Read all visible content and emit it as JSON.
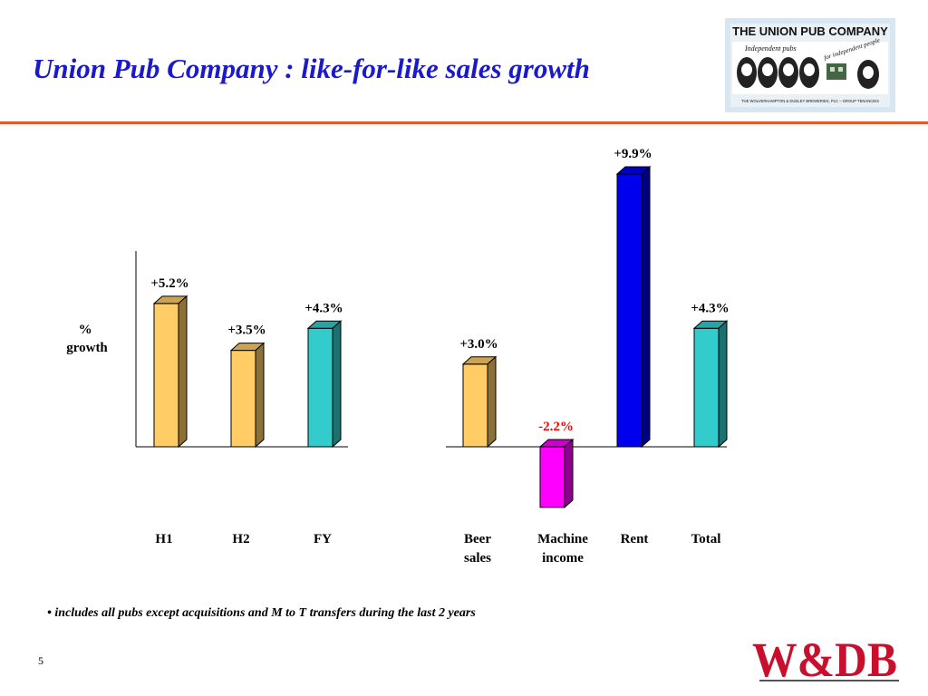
{
  "title": "Union Pub Company : like-for-like sales growth",
  "logo": {
    "name": "THE UNION PUB COMPANY",
    "tagline_left": "Independent pubs",
    "tagline_right": "for independent people",
    "subline": "THE WOLVERHAMPTON & DUDLEY BREWERIES, PLC – GROUP TENANCIES"
  },
  "footnote": "• includes all pubs except acquisitions and M to T transfers during the last 2 years",
  "page_number": "5",
  "brand_logo": "W&DB",
  "colors": {
    "title": "#1a1acc",
    "rule": "#e8562a",
    "negative_label": "#ff0000",
    "brand": "#c8102e"
  },
  "chart_data": [
    {
      "type": "bar",
      "ylabel": "% growth",
      "categories": [
        "H1",
        "H2",
        "FY"
      ],
      "values": [
        5.2,
        3.5,
        4.3
      ],
      "data_labels": [
        "+5.2%",
        "+3.5%",
        "+4.3%"
      ],
      "bar_colors": [
        "#ffcc66",
        "#ffcc66",
        "#33cccc"
      ]
    },
    {
      "type": "bar",
      "categories": [
        "Beer sales",
        "Machine income",
        "Rent",
        "Total"
      ],
      "values": [
        3.0,
        -2.2,
        9.9,
        4.3
      ],
      "data_labels": [
        "+3.0%",
        "-2.2%",
        "+9.9%",
        "+4.3%"
      ],
      "bar_colors": [
        "#ffcc66",
        "#ff00ff",
        "#0000ee",
        "#33cccc"
      ]
    }
  ]
}
